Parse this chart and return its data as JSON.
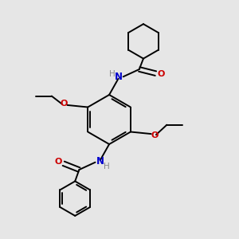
{
  "background_color": "#e6e6e6",
  "bond_color": "#000000",
  "nitrogen_color": "#0000cc",
  "oxygen_color": "#cc0000",
  "hydrogen_color": "#888888",
  "line_width": 1.4,
  "fig_size": [
    3.0,
    3.0
  ],
  "dpi": 100,
  "xlim": [
    -1.8,
    2.6
  ],
  "ylim": [
    -3.5,
    2.2
  ]
}
